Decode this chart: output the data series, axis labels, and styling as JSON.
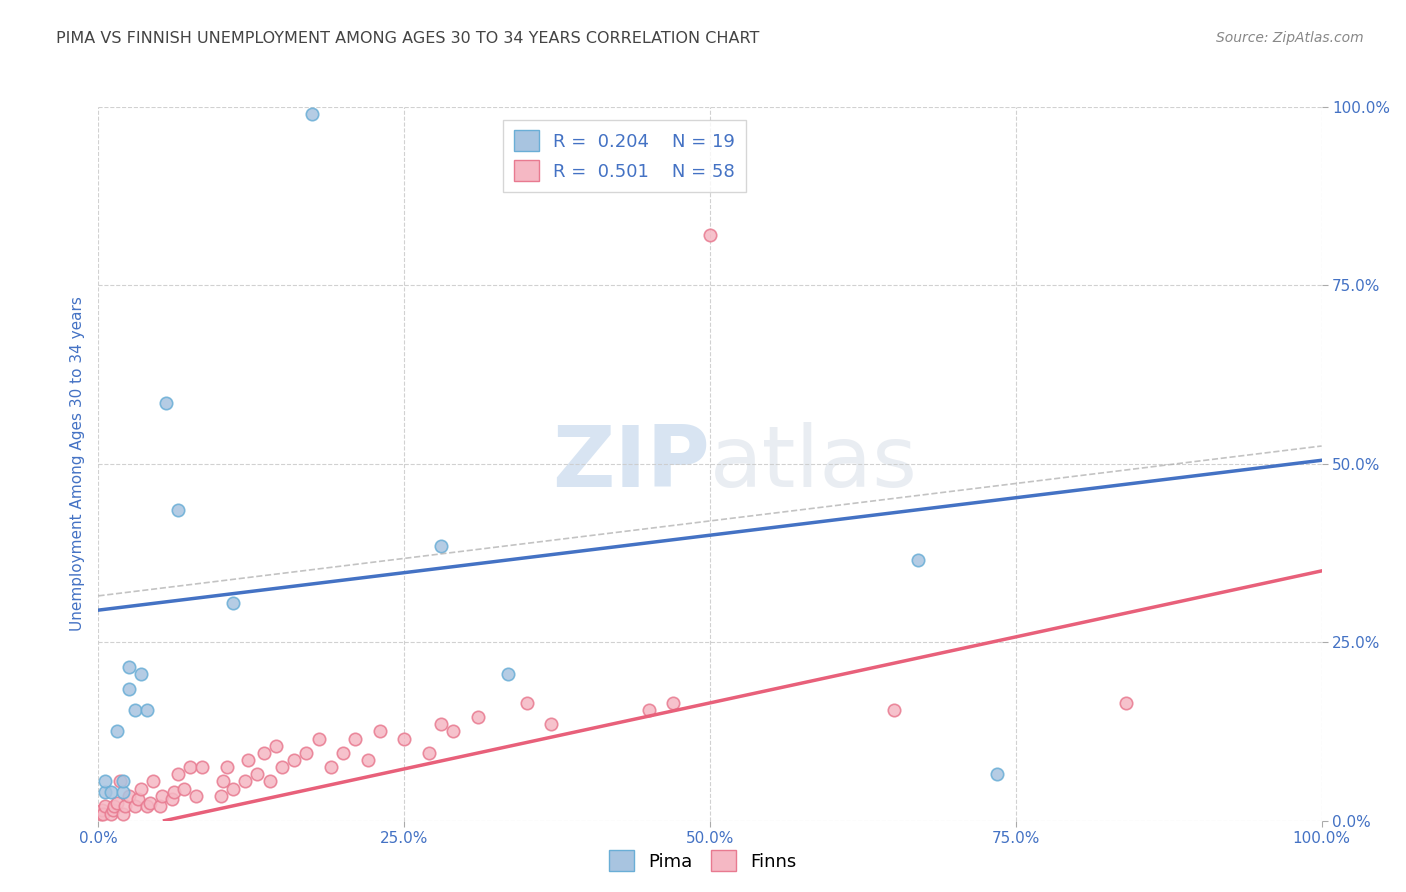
{
  "title": "PIMA VS FINNISH UNEMPLOYMENT AMONG AGES 30 TO 34 YEARS CORRELATION CHART",
  "source": "Source: ZipAtlas.com",
  "ylabel": "Unemployment Among Ages 30 to 34 years",
  "xlim": [
    0.0,
    1.0
  ],
  "ylim": [
    0.0,
    1.0
  ],
  "xticks": [
    0.0,
    0.25,
    0.5,
    0.75,
    1.0
  ],
  "yticks": [
    0.0,
    0.25,
    0.5,
    0.75,
    1.0
  ],
  "xticklabels": [
    "0.0%",
    "25.0%",
    "50.0%",
    "75.0%",
    "100.0%"
  ],
  "yticklabels": [
    "0.0%",
    "25.0%",
    "50.0%",
    "75.0%",
    "100.0%"
  ],
  "pima_color": "#a8c4e0",
  "pima_edge_color": "#6aaed6",
  "finns_color": "#f5b8c4",
  "finns_edge_color": "#e87a90",
  "pima_line_color": "#4472c4",
  "finns_line_color": "#e8607a",
  "legend_r_pima": "0.204",
  "legend_n_pima": "19",
  "legend_r_finns": "0.501",
  "legend_n_finns": "58",
  "legend_color": "#4472c4",
  "watermark_zip": "ZIP",
  "watermark_atlas": "atlas",
  "background_color": "#ffffff",
  "grid_color": "#cccccc",
  "title_color": "#444444",
  "pima_x": [
    0.005,
    0.005,
    0.01,
    0.015,
    0.02,
    0.02,
    0.025,
    0.025,
    0.03,
    0.035,
    0.04,
    0.055,
    0.065,
    0.11,
    0.175,
    0.28,
    0.335,
    0.67,
    0.735
  ],
  "pima_y": [
    0.04,
    0.055,
    0.04,
    0.125,
    0.04,
    0.055,
    0.185,
    0.215,
    0.155,
    0.205,
    0.155,
    0.585,
    0.435,
    0.305,
    0.99,
    0.385,
    0.205,
    0.365,
    0.065
  ],
  "finns_x": [
    0.002,
    0.003,
    0.004,
    0.005,
    0.01,
    0.012,
    0.013,
    0.015,
    0.018,
    0.02,
    0.022,
    0.025,
    0.03,
    0.032,
    0.035,
    0.04,
    0.042,
    0.045,
    0.05,
    0.052,
    0.06,
    0.062,
    0.065,
    0.07,
    0.075,
    0.08,
    0.085,
    0.1,
    0.102,
    0.105,
    0.11,
    0.12,
    0.122,
    0.13,
    0.135,
    0.14,
    0.145,
    0.15,
    0.16,
    0.17,
    0.18,
    0.19,
    0.2,
    0.21,
    0.22,
    0.23,
    0.25,
    0.27,
    0.28,
    0.29,
    0.31,
    0.35,
    0.37,
    0.45,
    0.47,
    0.5,
    0.65,
    0.84
  ],
  "finns_y": [
    0.01,
    0.015,
    0.01,
    0.02,
    0.01,
    0.015,
    0.02,
    0.025,
    0.055,
    0.01,
    0.02,
    0.035,
    0.02,
    0.03,
    0.045,
    0.02,
    0.025,
    0.055,
    0.02,
    0.035,
    0.03,
    0.04,
    0.065,
    0.045,
    0.075,
    0.035,
    0.075,
    0.035,
    0.055,
    0.075,
    0.045,
    0.055,
    0.085,
    0.065,
    0.095,
    0.055,
    0.105,
    0.075,
    0.085,
    0.095,
    0.115,
    0.075,
    0.095,
    0.115,
    0.085,
    0.125,
    0.115,
    0.095,
    0.135,
    0.125,
    0.145,
    0.165,
    0.135,
    0.155,
    0.165,
    0.82,
    0.155,
    0.165
  ],
  "marker_size": 80,
  "marker_linewidth": 1.2,
  "pima_trend_intercept": 0.295,
  "pima_trend_slope": 0.21,
  "finns_trend_intercept": -0.02,
  "finns_trend_slope": 0.37
}
